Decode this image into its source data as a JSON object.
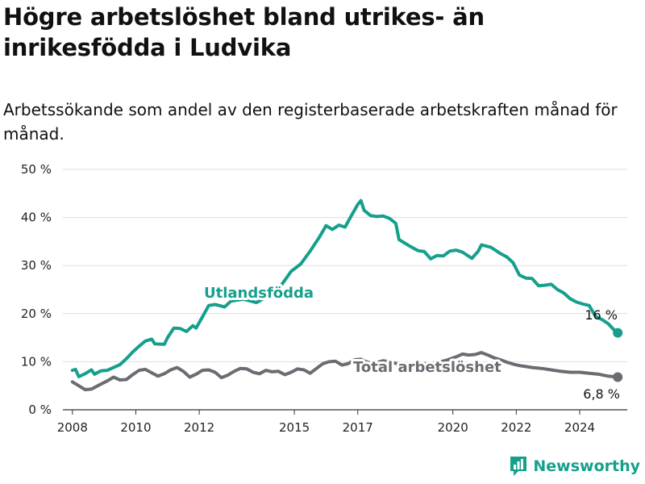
{
  "title": "Högre arbetslöshet bland utrikes- än inrikesfödda i Ludvika",
  "subtitle": "Arbetssökande som andel av den registerbaserade arbetskraften månad för månad.",
  "brand": "Newsworthy",
  "colors": {
    "utlandsfodda": "#169f8c",
    "total": "#6b6b72",
    "grid": "#dddddd"
  },
  "chart_data": {
    "type": "line",
    "title": "Högre arbetslöshet bland utrikes- än inrikesfödda i Ludvika",
    "subtitle": "Arbetssökande som andel av den registerbaserade arbetskraften månad för månad.",
    "x_ticks": [
      2008,
      2010,
      2012,
      2015,
      2017,
      2020,
      2022,
      2024
    ],
    "y_ticks": [
      0,
      10,
      20,
      30,
      40,
      50
    ],
    "y_tick_labels": [
      "0 %",
      "10 %",
      "20 %",
      "30 %",
      "40 %",
      "50 %"
    ],
    "xlim": [
      2007.7,
      2025.5
    ],
    "ylim": [
      0,
      50
    ],
    "grid": true,
    "series": [
      {
        "name": "Utlandsfödda",
        "end_label": "16 %",
        "points": [
          [
            2008.0,
            8.2
          ],
          [
            2008.1,
            8.4
          ],
          [
            2008.2,
            6.9
          ],
          [
            2008.4,
            7.5
          ],
          [
            2008.6,
            8.3
          ],
          [
            2008.7,
            7.4
          ],
          [
            2008.9,
            8.1
          ],
          [
            2009.1,
            8.2
          ],
          [
            2009.3,
            8.8
          ],
          [
            2009.5,
            9.4
          ],
          [
            2009.7,
            10.6
          ],
          [
            2009.9,
            12.0
          ],
          [
            2010.1,
            13.2
          ],
          [
            2010.3,
            14.3
          ],
          [
            2010.5,
            14.7
          ],
          [
            2010.6,
            13.7
          ],
          [
            2010.9,
            13.6
          ],
          [
            2011.0,
            15.0
          ],
          [
            2011.2,
            17.0
          ],
          [
            2011.4,
            16.9
          ],
          [
            2011.6,
            16.3
          ],
          [
            2011.8,
            17.5
          ],
          [
            2011.9,
            17.0
          ],
          [
            2012.1,
            19.3
          ],
          [
            2012.3,
            21.7
          ],
          [
            2012.5,
            21.9
          ],
          [
            2012.8,
            21.4
          ],
          [
            2013.0,
            22.6
          ],
          [
            2013.4,
            23.0
          ],
          [
            2013.8,
            22.3
          ],
          [
            2014.2,
            23.7
          ],
          [
            2014.6,
            26.0
          ],
          [
            2014.9,
            28.8
          ],
          [
            2015.2,
            30.3
          ],
          [
            2015.5,
            33.0
          ],
          [
            2015.8,
            36.0
          ],
          [
            2016.0,
            38.3
          ],
          [
            2016.2,
            37.5
          ],
          [
            2016.4,
            38.4
          ],
          [
            2016.6,
            38.0
          ],
          [
            2016.8,
            40.4
          ],
          [
            2017.0,
            42.7
          ],
          [
            2017.1,
            43.5
          ],
          [
            2017.2,
            41.5
          ],
          [
            2017.4,
            40.4
          ],
          [
            2017.6,
            40.2
          ],
          [
            2017.8,
            40.3
          ],
          [
            2018.0,
            39.8
          ],
          [
            2018.2,
            38.8
          ],
          [
            2018.3,
            35.4
          ],
          [
            2018.6,
            34.2
          ],
          [
            2018.9,
            33.1
          ],
          [
            2019.1,
            32.9
          ],
          [
            2019.3,
            31.4
          ],
          [
            2019.5,
            32.1
          ],
          [
            2019.7,
            32.0
          ],
          [
            2019.9,
            33.0
          ],
          [
            2020.1,
            33.2
          ],
          [
            2020.3,
            32.8
          ],
          [
            2020.6,
            31.5
          ],
          [
            2020.8,
            33.0
          ],
          [
            2020.9,
            34.3
          ],
          [
            2021.2,
            33.8
          ],
          [
            2021.5,
            32.5
          ],
          [
            2021.7,
            31.8
          ],
          [
            2021.9,
            30.6
          ],
          [
            2022.1,
            28.0
          ],
          [
            2022.3,
            27.4
          ],
          [
            2022.5,
            27.3
          ],
          [
            2022.7,
            25.8
          ],
          [
            2022.9,
            25.9
          ],
          [
            2023.1,
            26.1
          ],
          [
            2023.3,
            25.0
          ],
          [
            2023.5,
            24.3
          ],
          [
            2023.7,
            23.1
          ],
          [
            2023.9,
            22.4
          ],
          [
            2024.1,
            22.0
          ],
          [
            2024.3,
            21.7
          ],
          [
            2024.5,
            19.4
          ],
          [
            2024.7,
            18.8
          ],
          [
            2024.9,
            17.9
          ],
          [
            2025.1,
            16.5
          ],
          [
            2025.2,
            16.0
          ]
        ]
      },
      {
        "name": "Total arbetslöshet",
        "end_label": "6,8 %",
        "points": [
          [
            2008.0,
            5.8
          ],
          [
            2008.2,
            5.0
          ],
          [
            2008.4,
            4.2
          ],
          [
            2008.6,
            4.3
          ],
          [
            2008.8,
            5.0
          ],
          [
            2009.1,
            6.0
          ],
          [
            2009.3,
            6.8
          ],
          [
            2009.5,
            6.2
          ],
          [
            2009.7,
            6.3
          ],
          [
            2009.9,
            7.3
          ],
          [
            2010.1,
            8.2
          ],
          [
            2010.3,
            8.4
          ],
          [
            2010.5,
            7.7
          ],
          [
            2010.7,
            7.0
          ],
          [
            2010.9,
            7.5
          ],
          [
            2011.1,
            8.3
          ],
          [
            2011.3,
            8.8
          ],
          [
            2011.5,
            8.0
          ],
          [
            2011.7,
            6.8
          ],
          [
            2011.9,
            7.4
          ],
          [
            2012.1,
            8.2
          ],
          [
            2012.3,
            8.3
          ],
          [
            2012.5,
            7.8
          ],
          [
            2012.7,
            6.7
          ],
          [
            2012.9,
            7.2
          ],
          [
            2013.1,
            8.0
          ],
          [
            2013.3,
            8.6
          ],
          [
            2013.5,
            8.5
          ],
          [
            2013.7,
            7.8
          ],
          [
            2013.9,
            7.5
          ],
          [
            2014.1,
            8.2
          ],
          [
            2014.3,
            7.9
          ],
          [
            2014.5,
            8.0
          ],
          [
            2014.7,
            7.3
          ],
          [
            2014.9,
            7.8
          ],
          [
            2015.1,
            8.5
          ],
          [
            2015.3,
            8.3
          ],
          [
            2015.5,
            7.6
          ],
          [
            2015.7,
            8.6
          ],
          [
            2015.9,
            9.6
          ],
          [
            2016.1,
            10.0
          ],
          [
            2016.3,
            10.1
          ],
          [
            2016.5,
            9.3
          ],
          [
            2016.7,
            9.6
          ],
          [
            2016.9,
            10.4
          ],
          [
            2017.1,
            10.5
          ],
          [
            2017.3,
            9.9
          ],
          [
            2017.5,
            9.6
          ],
          [
            2017.8,
            10.2
          ],
          [
            2018.0,
            10.0
          ],
          [
            2018.3,
            9.5
          ],
          [
            2018.6,
            9.3
          ],
          [
            2018.9,
            9.8
          ],
          [
            2019.2,
            9.5
          ],
          [
            2019.5,
            9.8
          ],
          [
            2019.8,
            10.3
          ],
          [
            2020.1,
            11.0
          ],
          [
            2020.3,
            11.6
          ],
          [
            2020.5,
            11.4
          ],
          [
            2020.7,
            11.5
          ],
          [
            2020.9,
            11.9
          ],
          [
            2021.1,
            11.4
          ],
          [
            2021.3,
            10.8
          ],
          [
            2021.5,
            10.4
          ],
          [
            2021.7,
            9.9
          ],
          [
            2021.9,
            9.5
          ],
          [
            2022.1,
            9.2
          ],
          [
            2022.3,
            9.0
          ],
          [
            2022.5,
            8.8
          ],
          [
            2022.8,
            8.6
          ],
          [
            2023.1,
            8.3
          ],
          [
            2023.4,
            8.0
          ],
          [
            2023.7,
            7.8
          ],
          [
            2024.0,
            7.8
          ],
          [
            2024.3,
            7.6
          ],
          [
            2024.6,
            7.4
          ],
          [
            2024.9,
            7.0
          ],
          [
            2025.2,
            6.8
          ]
        ]
      }
    ]
  }
}
